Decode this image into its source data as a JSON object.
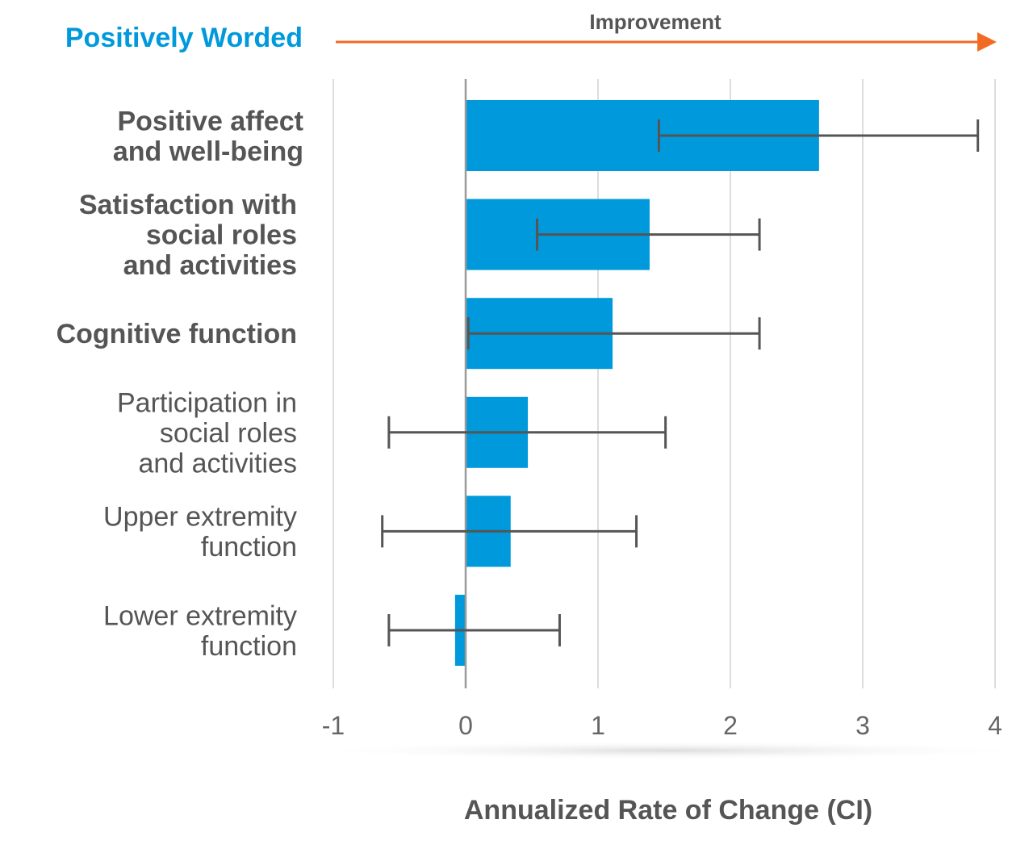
{
  "colors": {
    "bar": "#0099DB",
    "title": "#0099DB",
    "arrow": "#F26B22",
    "text": "#555555",
    "errorbar": "#555555",
    "grid": "#DDDDDD",
    "zero_line": "#9A9A9A"
  },
  "chart_data": {
    "type": "bar",
    "orientation": "horizontal",
    "title": "Positively Worded",
    "annotation": "Improvement",
    "xlabel": "Annualized Rate of Change (CI)",
    "xlim": [
      -1,
      4
    ],
    "xticks": [
      "-1",
      "0",
      "1",
      "2",
      "3",
      "4"
    ],
    "grid": "vertical",
    "categories": [
      {
        "lines": [
          "Positive affect",
          "and well-being"
        ],
        "bold": true
      },
      {
        "lines": [
          "Satisfaction with",
          "social roles",
          "and activities"
        ],
        "bold": true
      },
      {
        "lines": [
          "Cognitive function"
        ],
        "bold": true
      },
      {
        "lines": [
          "Participation in",
          "social roles",
          "and activities"
        ],
        "bold": false
      },
      {
        "lines": [
          "Upper extremity",
          "function"
        ],
        "bold": false
      },
      {
        "lines": [
          "Lower extremity",
          "function"
        ],
        "bold": false
      }
    ],
    "values": [
      2.67,
      1.39,
      1.11,
      0.47,
      0.34,
      -0.08
    ],
    "ci_low": [
      1.46,
      0.54,
      0.02,
      -0.58,
      -0.63,
      -0.58
    ],
    "ci_high": [
      3.87,
      2.22,
      2.22,
      1.51,
      1.29,
      0.71
    ]
  }
}
